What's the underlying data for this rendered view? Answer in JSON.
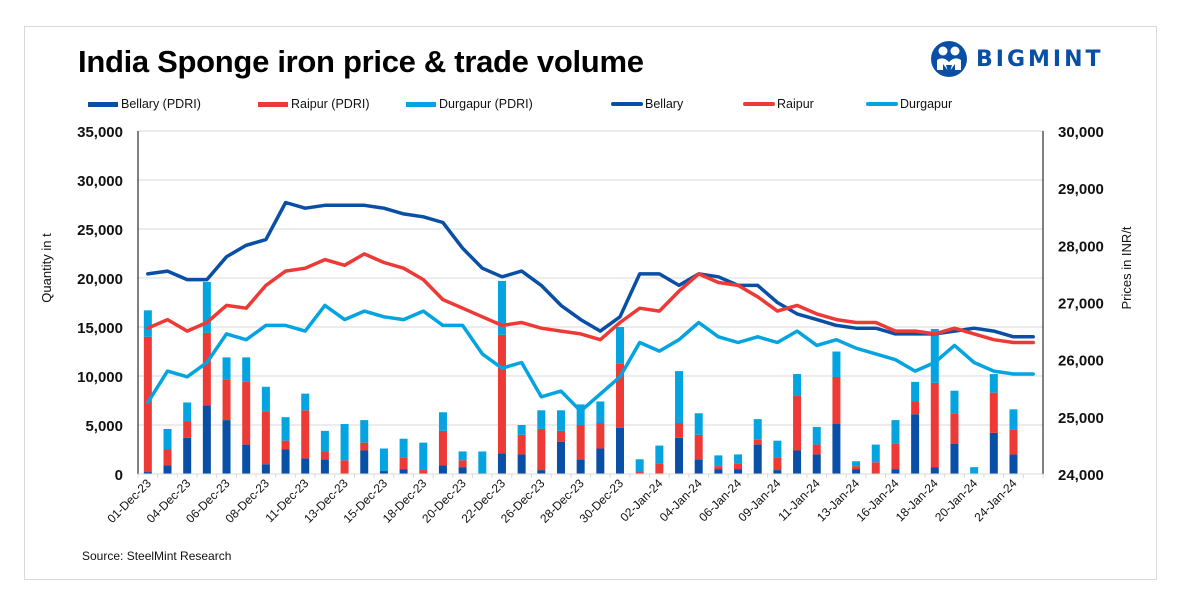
{
  "header": {
    "title": "India Sponge iron price & trade volume",
    "brand": "BIGMINT"
  },
  "footer": {
    "source": "Source: SteelMint Research"
  },
  "colors": {
    "bellary": "#0a4fa6",
    "raipur": "#ee3a36",
    "durgapur": "#04a4e0",
    "grid": "#d9d9d9",
    "brand": "#0a4fa6"
  },
  "chart_data": {
    "type": "bar",
    "subtype": "stacked bar + dual-axis line",
    "title": "India Sponge iron price & trade volume",
    "ylabel": "Quantity in t",
    "y2label": "Prices in INR/t",
    "ylim": [
      0,
      35000
    ],
    "y2lim": [
      24000,
      30000
    ],
    "yticks": [
      "0",
      "5,000",
      "10,000",
      "15,000",
      "20,000",
      "25,000",
      "30,000",
      "35,000"
    ],
    "y2ticks": [
      "24,000",
      "25,000",
      "26,000",
      "27,000",
      "28,000",
      "29,000",
      "30,000"
    ],
    "grid": true,
    "legend_position": "top",
    "legend": [
      "Bellary (PDRI)",
      "Raipur (PDRI)",
      "Durgapur (PDRI)",
      "Bellary",
      "Raipur",
      "Durgapur"
    ],
    "x_tick_labels": [
      "01-Dec-23",
      "04-Dec-23",
      "06-Dec-23",
      "08-Dec-23",
      "11-Dec-23",
      "13-Dec-23",
      "15-Dec-23",
      "18-Dec-23",
      "20-Dec-23",
      "22-Dec-23",
      "26-Dec-23",
      "28-Dec-23",
      "30-Dec-23",
      "02-Jan-24",
      "04-Jan-24",
      "06-Jan-24",
      "09-Jan-24",
      "11-Jan-24",
      "13-Jan-24",
      "16-Jan-24",
      "18-Jan-24",
      "20-Jan-24",
      "24-Jan-24"
    ],
    "n_points": 46,
    "bar_series": [
      {
        "name": "Bellary (PDRI)",
        "axis": "left",
        "values": [
          200,
          900,
          3700,
          7000,
          5500,
          3000,
          1000,
          2500,
          1600,
          1500,
          0,
          2400,
          300,
          500,
          0,
          900,
          700,
          0,
          2100,
          2000,
          400,
          3300,
          1500,
          2600,
          4700,
          0,
          0,
          3700,
          1500,
          500,
          500,
          3000,
          400,
          2400,
          2000,
          5100,
          500,
          0,
          500,
          6100,
          700,
          3100,
          0,
          4200,
          2000,
          0
        ]
      },
      {
        "name": "Raipur (PDRI)",
        "axis": "left",
        "values": [
          13800,
          1600,
          1700,
          7400,
          4100,
          6400,
          5400,
          900,
          4900,
          800,
          1400,
          800,
          0,
          1200,
          400,
          3500,
          700,
          0,
          12100,
          2000,
          4200,
          1100,
          3500,
          2600,
          6600,
          200,
          1100,
          1500,
          2500,
          300,
          600,
          500,
          1300,
          5600,
          1000,
          4800,
          300,
          1200,
          2600,
          1300,
          8600,
          3100,
          0,
          4100,
          2500,
          0
        ]
      },
      {
        "name": "Durgapur (PDRI)",
        "axis": "left",
        "values": [
          2700,
          2100,
          1900,
          5200,
          2300,
          2500,
          2500,
          2400,
          1700,
          2100,
          3700,
          2300,
          2300,
          1900,
          2800,
          1900,
          900,
          2300,
          5500,
          1000,
          1900,
          2100,
          2100,
          2200,
          3700,
          1300,
          1800,
          5300,
          2200,
          1100,
          900,
          2100,
          1700,
          2200,
          1800,
          2600,
          500,
          1800,
          2400,
          2000,
          5500,
          2300,
          700,
          1900,
          2100,
          0
        ]
      }
    ],
    "line_series": [
      {
        "name": "Bellary",
        "axis": "right",
        "values": [
          27500,
          27550,
          27400,
          27400,
          27800,
          28000,
          28100,
          28750,
          28650,
          28700,
          28700,
          28700,
          28650,
          28550,
          28500,
          28400,
          27950,
          27600,
          27450,
          27550,
          27300,
          26950,
          26700,
          26500,
          26750,
          27500,
          27500,
          27300,
          27500,
          27450,
          27300,
          27300,
          27000,
          26800,
          26700,
          26600,
          26550,
          26550,
          26450,
          26450,
          26450,
          26500,
          26550,
          26500,
          26400,
          26400
        ]
      },
      {
        "name": "Raipur",
        "axis": "right",
        "values": [
          26550,
          26700,
          26500,
          26650,
          26950,
          26900,
          27300,
          27550,
          27600,
          27750,
          27650,
          27850,
          27700,
          27600,
          27400,
          27050,
          26900,
          26750,
          26600,
          26650,
          26550,
          26500,
          26450,
          26350,
          26650,
          26900,
          26850,
          27200,
          27500,
          27350,
          27300,
          27100,
          26850,
          26950,
          26800,
          26700,
          26650,
          26650,
          26500,
          26500,
          26450,
          26550,
          26450,
          26350,
          26300,
          26300
        ]
      },
      {
        "name": "Durgapur",
        "axis": "right",
        "values": [
          25250,
          25800,
          25700,
          25950,
          26450,
          26350,
          26600,
          26600,
          26500,
          26950,
          26700,
          26850,
          26750,
          26700,
          26850,
          26600,
          26600,
          26100,
          25850,
          25950,
          25350,
          25450,
          25100,
          25400,
          25700,
          26300,
          26150,
          26350,
          26650,
          26400,
          26300,
          26400,
          26300,
          26500,
          26250,
          26350,
          26200,
          26100,
          26000,
          25800,
          25950,
          26250,
          25950,
          25800,
          25750,
          25750
        ]
      }
    ]
  }
}
